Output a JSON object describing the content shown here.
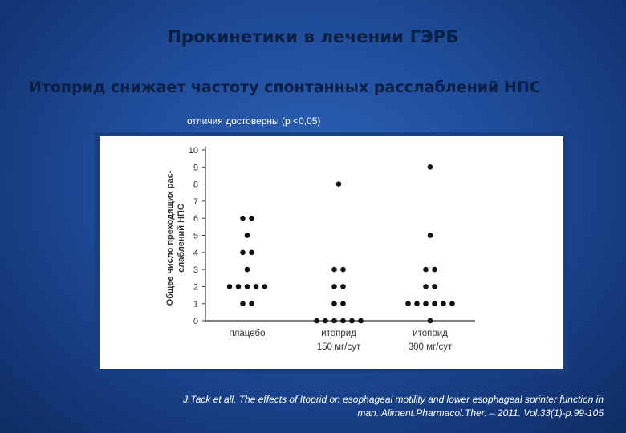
{
  "header": {
    "title": "Прокинетики в лечении ГЭРБ",
    "subtitle": "Итоприд снижает частоту спонтанных расслаблений НПС"
  },
  "note": "отличия достоверны (p <0,05)",
  "source": {
    "line1": "J.Tack et all. The effects of Itoprid on esophageal motility and lower esophageal sprinter function in",
    "line2": "man. Aliment.Pharmacol.Ther. – 2011. Vol.33(1)-p.99-105"
  },
  "colors": {
    "background": "#1f4c99",
    "title_text": "#0b1f44",
    "chart_frame": "#1a3f80",
    "points": "#111111"
  },
  "chart_data": {
    "type": "scatter",
    "ylabel_line1": "Общее число преходящих рас-",
    "ylabel_line2": "слаблений НПС",
    "ylim": [
      0,
      10
    ],
    "yticks": [
      "0",
      "1",
      "2",
      "3",
      "4",
      "5",
      "6",
      "7",
      "8",
      "9",
      "10"
    ],
    "categories": [
      {
        "line1": "плацебо",
        "line2": ""
      },
      {
        "line1": "итоприд",
        "line2": "150 мг/сут"
      },
      {
        "line1": "итоприд",
        "line2": "300 мг/сут"
      }
    ],
    "grid": false,
    "points": [
      {
        "group": 0,
        "y": 1,
        "count": 2
      },
      {
        "group": 0,
        "y": 2,
        "count": 5
      },
      {
        "group": 0,
        "y": 3,
        "count": 1
      },
      {
        "group": 0,
        "y": 4,
        "count": 2
      },
      {
        "group": 0,
        "y": 5,
        "count": 1
      },
      {
        "group": 0,
        "y": 6,
        "count": 2
      },
      {
        "group": 1,
        "y": 0,
        "count": 6
      },
      {
        "group": 1,
        "y": 1,
        "count": 2
      },
      {
        "group": 1,
        "y": 2,
        "count": 2
      },
      {
        "group": 1,
        "y": 3,
        "count": 2
      },
      {
        "group": 1,
        "y": 8,
        "count": 1
      },
      {
        "group": 2,
        "y": 0,
        "count": 1
      },
      {
        "group": 2,
        "y": 1,
        "count": 6
      },
      {
        "group": 2,
        "y": 2,
        "count": 2
      },
      {
        "group": 2,
        "y": 3,
        "count": 2
      },
      {
        "group": 2,
        "y": 5,
        "count": 1
      },
      {
        "group": 2,
        "y": 9,
        "count": 1
      }
    ]
  }
}
